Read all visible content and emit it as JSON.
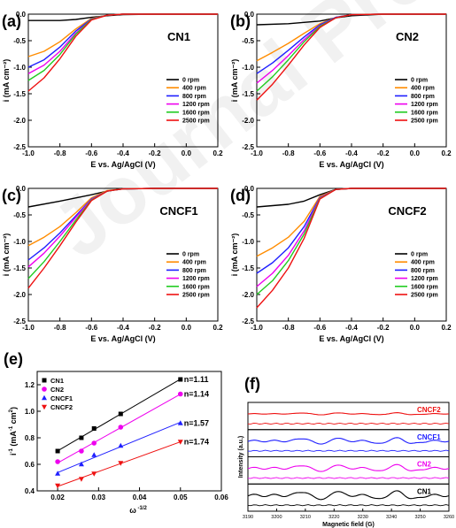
{
  "watermark": "Journal Pre-proofs",
  "chart_data": [
    {
      "type": "line",
      "panel_label": "(a)",
      "title": "CN1",
      "xlabel": "E vs. Ag/AgCl (V)",
      "ylabel": "i (mA cm⁻²)",
      "xlim": [
        -1.0,
        0.2
      ],
      "ylim": [
        -2.5,
        0.0
      ],
      "xticks": [
        "-1.0",
        "-0.8",
        "-0.6",
        "-0.4",
        "-0.2",
        "0.0",
        "0.2"
      ],
      "yticks": [
        "0.0",
        "-0.5",
        "-1.0",
        "-1.5",
        "-2.0",
        "-2.5"
      ],
      "legend_position": "lower-right",
      "series": [
        {
          "name": "0 rpm",
          "color": "#000000",
          "x": [
            -1.0,
            -0.8,
            -0.7,
            -0.6,
            -0.5,
            -0.4,
            -0.2,
            0.0,
            0.2
          ],
          "y": [
            -0.12,
            -0.12,
            -0.1,
            -0.06,
            -0.03,
            -0.01,
            0.0,
            0.0,
            0.0
          ]
        },
        {
          "name": "400 rpm",
          "color": "#ff8c00",
          "x": [
            -1.0,
            -0.9,
            -0.8,
            -0.7,
            -0.6,
            -0.5,
            -0.4,
            -0.2,
            0.0,
            0.2
          ],
          "y": [
            -0.8,
            -0.7,
            -0.52,
            -0.28,
            -0.08,
            -0.02,
            0.0,
            0.0,
            0.0,
            0.0
          ]
        },
        {
          "name": "800 rpm",
          "color": "#1f1fff",
          "x": [
            -1.0,
            -0.9,
            -0.8,
            -0.7,
            -0.6,
            -0.5,
            -0.4,
            -0.2,
            0.0,
            0.2
          ],
          "y": [
            -1.0,
            -0.86,
            -0.62,
            -0.32,
            -0.09,
            -0.02,
            0.0,
            0.0,
            0.0,
            0.0
          ]
        },
        {
          "name": "1200 rpm",
          "color": "#ee00ee",
          "x": [
            -1.0,
            -0.9,
            -0.8,
            -0.7,
            -0.6,
            -0.5,
            -0.4,
            -0.2,
            0.0,
            0.2
          ],
          "y": [
            -1.12,
            -0.96,
            -0.7,
            -0.36,
            -0.1,
            -0.02,
            0.0,
            0.0,
            0.0,
            0.0
          ]
        },
        {
          "name": "1600 rpm",
          "color": "#22cc22",
          "x": [
            -1.0,
            -0.9,
            -0.8,
            -0.7,
            -0.6,
            -0.5,
            -0.4,
            -0.2,
            0.0,
            0.2
          ],
          "y": [
            -1.25,
            -1.06,
            -0.76,
            -0.38,
            -0.1,
            -0.02,
            0.0,
            0.0,
            0.0,
            0.0
          ]
        },
        {
          "name": "2500 rpm",
          "color": "#ee1111",
          "x": [
            -1.0,
            -0.9,
            -0.8,
            -0.7,
            -0.6,
            -0.5,
            -0.4,
            -0.2,
            0.0,
            0.2
          ],
          "y": [
            -1.45,
            -1.2,
            -0.84,
            -0.42,
            -0.11,
            -0.02,
            0.0,
            0.0,
            0.0,
            0.0
          ]
        }
      ]
    },
    {
      "type": "line",
      "panel_label": "(b)",
      "title": "CN2",
      "xlabel": "E vs. Ag/AgCl (V)",
      "ylabel": "i (mA cm⁻²)",
      "xlim": [
        -1.0,
        0.2
      ],
      "ylim": [
        -2.5,
        0.0
      ],
      "xticks": [
        "-1.0",
        "-0.8",
        "-0.6",
        "-0.4",
        "-0.2",
        "0.0",
        "0.2"
      ],
      "yticks": [
        "0.0",
        "-0.5",
        "-1.0",
        "-1.5",
        "-2.0",
        "-2.5"
      ],
      "legend_position": "lower-right",
      "series": [
        {
          "name": "0 rpm",
          "color": "#000000",
          "x": [
            -1.0,
            -0.8,
            -0.6,
            -0.5,
            -0.4,
            -0.2,
            0.0,
            0.2
          ],
          "y": [
            -0.2,
            -0.18,
            -0.13,
            -0.07,
            -0.03,
            0.0,
            0.0,
            0.0
          ]
        },
        {
          "name": "400 rpm",
          "color": "#ff8c00",
          "x": [
            -1.0,
            -0.9,
            -0.8,
            -0.7,
            -0.6,
            -0.5,
            -0.4,
            -0.2,
            0.0,
            0.2
          ],
          "y": [
            -0.88,
            -0.72,
            -0.55,
            -0.36,
            -0.18,
            -0.06,
            -0.01,
            0.0,
            0.0,
            0.0
          ]
        },
        {
          "name": "800 rpm",
          "color": "#1f1fff",
          "x": [
            -1.0,
            -0.9,
            -0.8,
            -0.7,
            -0.6,
            -0.5,
            -0.4,
            -0.2,
            0.0,
            0.2
          ],
          "y": [
            -1.12,
            -0.92,
            -0.68,
            -0.43,
            -0.2,
            -0.06,
            -0.01,
            0.0,
            0.0,
            0.0
          ]
        },
        {
          "name": "1200 rpm",
          "color": "#ee00ee",
          "x": [
            -1.0,
            -0.9,
            -0.8,
            -0.7,
            -0.6,
            -0.5,
            -0.4,
            -0.2,
            0.0,
            0.2
          ],
          "y": [
            -1.3,
            -1.06,
            -0.78,
            -0.48,
            -0.22,
            -0.07,
            -0.01,
            0.0,
            0.0,
            0.0
          ]
        },
        {
          "name": "1600 rpm",
          "color": "#22cc22",
          "x": [
            -1.0,
            -0.9,
            -0.8,
            -0.7,
            -0.6,
            -0.5,
            -0.4,
            -0.2,
            0.0,
            0.2
          ],
          "y": [
            -1.45,
            -1.18,
            -0.86,
            -0.52,
            -0.23,
            -0.07,
            -0.01,
            0.0,
            0.0,
            0.0
          ]
        },
        {
          "name": "2500 rpm",
          "color": "#ee1111",
          "x": [
            -1.0,
            -0.9,
            -0.8,
            -0.7,
            -0.6,
            -0.5,
            -0.4,
            -0.2,
            0.0,
            0.2
          ],
          "y": [
            -1.62,
            -1.32,
            -0.96,
            -0.58,
            -0.25,
            -0.07,
            -0.01,
            0.0,
            0.0,
            0.0
          ]
        }
      ]
    },
    {
      "type": "line",
      "panel_label": "(c)",
      "title": "CNCF1",
      "xlabel": "E vs. Ag/AgCl (V)",
      "ylabel": "i (mA cm⁻²)",
      "xlim": [
        -1.0,
        0.2
      ],
      "ylim": [
        -2.5,
        0.0
      ],
      "xticks": [
        "-1.0",
        "-0.8",
        "-0.6",
        "-0.4",
        "-0.2",
        "0.0",
        "0.2"
      ],
      "yticks": [
        "0.0",
        "-0.5",
        "-1.0",
        "-1.5",
        "-2.0",
        "-2.5"
      ],
      "legend_position": "lower-right",
      "series": [
        {
          "name": "0 rpm",
          "color": "#000000",
          "x": [
            -1.0,
            -0.8,
            -0.6,
            -0.5,
            -0.4,
            -0.2,
            0.0,
            0.2
          ],
          "y": [
            -0.35,
            -0.24,
            -0.12,
            -0.05,
            -0.01,
            0.0,
            0.0,
            0.0
          ]
        },
        {
          "name": "400 rpm",
          "color": "#ff8c00",
          "x": [
            -1.0,
            -0.9,
            -0.8,
            -0.7,
            -0.6,
            -0.5,
            -0.4,
            -0.2,
            0.0,
            0.2
          ],
          "y": [
            -1.08,
            -0.92,
            -0.72,
            -0.46,
            -0.18,
            -0.04,
            -0.01,
            0.0,
            0.0,
            0.0
          ]
        },
        {
          "name": "800 rpm",
          "color": "#1f1fff",
          "x": [
            -1.0,
            -0.9,
            -0.8,
            -0.7,
            -0.6,
            -0.5,
            -0.4,
            -0.2,
            0.0,
            0.2
          ],
          "y": [
            -1.35,
            -1.12,
            -0.84,
            -0.52,
            -0.2,
            -0.05,
            -0.01,
            0.0,
            0.0,
            0.0
          ]
        },
        {
          "name": "1200 rpm",
          "color": "#ee00ee",
          "x": [
            -1.0,
            -0.9,
            -0.8,
            -0.7,
            -0.6,
            -0.5,
            -0.4,
            -0.2,
            0.0,
            0.2
          ],
          "y": [
            -1.48,
            -1.22,
            -0.9,
            -0.55,
            -0.21,
            -0.05,
            -0.01,
            0.0,
            0.0,
            0.0
          ]
        },
        {
          "name": "1600 rpm",
          "color": "#22cc22",
          "x": [
            -1.0,
            -0.9,
            -0.8,
            -0.7,
            -0.6,
            -0.5,
            -0.4,
            -0.2,
            0.0,
            0.2
          ],
          "y": [
            -1.7,
            -1.38,
            -1.0,
            -0.6,
            -0.22,
            -0.05,
            -0.01,
            0.0,
            0.0,
            0.0
          ]
        },
        {
          "name": "2500 rpm",
          "color": "#ee1111",
          "x": [
            -1.0,
            -0.9,
            -0.8,
            -0.7,
            -0.6,
            -0.5,
            -0.4,
            -0.2,
            0.0,
            0.2
          ],
          "y": [
            -1.88,
            -1.5,
            -1.08,
            -0.64,
            -0.23,
            -0.05,
            -0.01,
            0.0,
            0.0,
            0.0
          ]
        }
      ]
    },
    {
      "type": "line",
      "panel_label": "(d)",
      "title": "CNCF2",
      "xlabel": "E vs. Ag/AgCl (V)",
      "ylabel": "i (mA cm⁻²)",
      "xlim": [
        -1.0,
        0.2
      ],
      "ylim": [
        -2.5,
        0.0
      ],
      "xticks": [
        "-1.0",
        "-0.8",
        "-0.6",
        "-0.4",
        "-0.2",
        "0.0",
        "0.2"
      ],
      "yticks": [
        "0.0",
        "-0.5",
        "-1.0",
        "-1.5",
        "-2.0",
        "-2.5"
      ],
      "legend_position": "lower-right",
      "series": [
        {
          "name": "0 rpm",
          "color": "#000000",
          "x": [
            -1.0,
            -0.8,
            -0.7,
            -0.6,
            -0.5,
            -0.4,
            -0.2,
            0.0,
            0.2
          ],
          "y": [
            -0.35,
            -0.3,
            -0.24,
            -0.12,
            -0.02,
            0.0,
            0.0,
            0.0,
            0.0
          ]
        },
        {
          "name": "400 rpm",
          "color": "#ff8c00",
          "x": [
            -1.0,
            -0.9,
            -0.8,
            -0.7,
            -0.6,
            -0.5,
            -0.4,
            -0.2,
            0.0,
            0.2
          ],
          "y": [
            -1.28,
            -1.12,
            -0.92,
            -0.62,
            -0.15,
            -0.02,
            0.0,
            0.0,
            0.0,
            0.0
          ]
        },
        {
          "name": "800 rpm",
          "color": "#1f1fff",
          "x": [
            -1.0,
            -0.9,
            -0.8,
            -0.7,
            -0.6,
            -0.5,
            -0.4,
            -0.2,
            0.0,
            0.2
          ],
          "y": [
            -1.6,
            -1.4,
            -1.12,
            -0.72,
            -0.17,
            -0.02,
            0.0,
            0.0,
            0.0,
            0.0
          ]
        },
        {
          "name": "1200 rpm",
          "color": "#ee00ee",
          "x": [
            -1.0,
            -0.9,
            -0.8,
            -0.7,
            -0.6,
            -0.5,
            -0.4,
            -0.2,
            0.0,
            0.2
          ],
          "y": [
            -1.85,
            -1.6,
            -1.26,
            -0.8,
            -0.18,
            -0.02,
            0.0,
            0.0,
            0.0,
            0.0
          ]
        },
        {
          "name": "1600 rpm",
          "color": "#22cc22",
          "x": [
            -1.0,
            -0.9,
            -0.8,
            -0.7,
            -0.6,
            -0.5,
            -0.4,
            -0.2,
            0.0,
            0.2
          ],
          "y": [
            -2.0,
            -1.74,
            -1.36,
            -0.86,
            -0.19,
            -0.02,
            0.0,
            0.0,
            0.0,
            0.0
          ]
        },
        {
          "name": "2500 rpm",
          "color": "#ee1111",
          "x": [
            -1.0,
            -0.9,
            -0.8,
            -0.7,
            -0.6,
            -0.5,
            -0.4,
            -0.2,
            0.0,
            0.2
          ],
          "y": [
            -2.25,
            -1.92,
            -1.5,
            -0.94,
            -0.2,
            -0.02,
            0.0,
            0.0,
            0.0,
            0.0
          ]
        }
      ]
    },
    {
      "type": "scatter",
      "panel_label": "(e)",
      "xlabel": "ω ⁻¹ᐟ²",
      "xlabel_text": "ω",
      "xlabel_sup": "-1/2",
      "ylabel_text": "i",
      "ylabel_sup": "-1",
      "ylabel_unit": " (mA",
      "ylabel_unit_sup": "-1",
      "ylabel_unit_end": " cm",
      "ylabel_unit_end_sup": "2",
      "ylabel_close": ")",
      "xlim": [
        0.015,
        0.06
      ],
      "ylim": [
        0.4,
        1.3
      ],
      "xticks": [
        "0.02",
        "0.03",
        "0.04",
        "0.05",
        "0.06"
      ],
      "yticks": [
        "0.4",
        "0.6",
        "0.8",
        "1.0",
        "1.2"
      ],
      "legend_position": "top-left",
      "series": [
        {
          "name": "CN1",
          "color": "#000000",
          "marker": "square",
          "x": [
            0.02,
            0.0258,
            0.0289,
            0.0354,
            0.05
          ],
          "y": [
            0.7,
            0.8,
            0.87,
            0.98,
            1.24
          ],
          "label": "n=1.11"
        },
        {
          "name": "CN2",
          "color": "#ee00ee",
          "marker": "circle",
          "x": [
            0.02,
            0.0258,
            0.0289,
            0.0354,
            0.05
          ],
          "y": [
            0.62,
            0.7,
            0.76,
            0.88,
            1.13
          ],
          "label": "n=1.14"
        },
        {
          "name": "CNCF1",
          "color": "#1f1fff",
          "marker": "triangle-up",
          "x": [
            0.02,
            0.0258,
            0.0289,
            0.0354,
            0.05
          ],
          "y": [
            0.53,
            0.6,
            0.67,
            0.74,
            0.91
          ],
          "label": "n=1.57"
        },
        {
          "name": "CNCF2",
          "color": "#ee1111",
          "marker": "triangle-down",
          "x": [
            0.02,
            0.0258,
            0.0289,
            0.0354,
            0.05
          ],
          "y": [
            0.44,
            0.49,
            0.53,
            0.61,
            0.77
          ],
          "label": "n=1.74"
        }
      ]
    },
    {
      "type": "line",
      "panel_label": "(f)",
      "xlabel": "Magnetic field (G)",
      "ylabel": "Intensity (a.u.)",
      "xlim": [
        3190,
        3260
      ],
      "xticks": [
        "3190",
        "3200",
        "3210",
        "3220",
        "3230",
        "3240",
        "3250",
        "3260"
      ],
      "series_labels": [
        "CNCF2",
        "CNCF1",
        "CN2",
        "CN1"
      ],
      "series_colors": [
        "#ee1111",
        "#1f1fff",
        "#ee00ee",
        "#000000"
      ]
    }
  ]
}
